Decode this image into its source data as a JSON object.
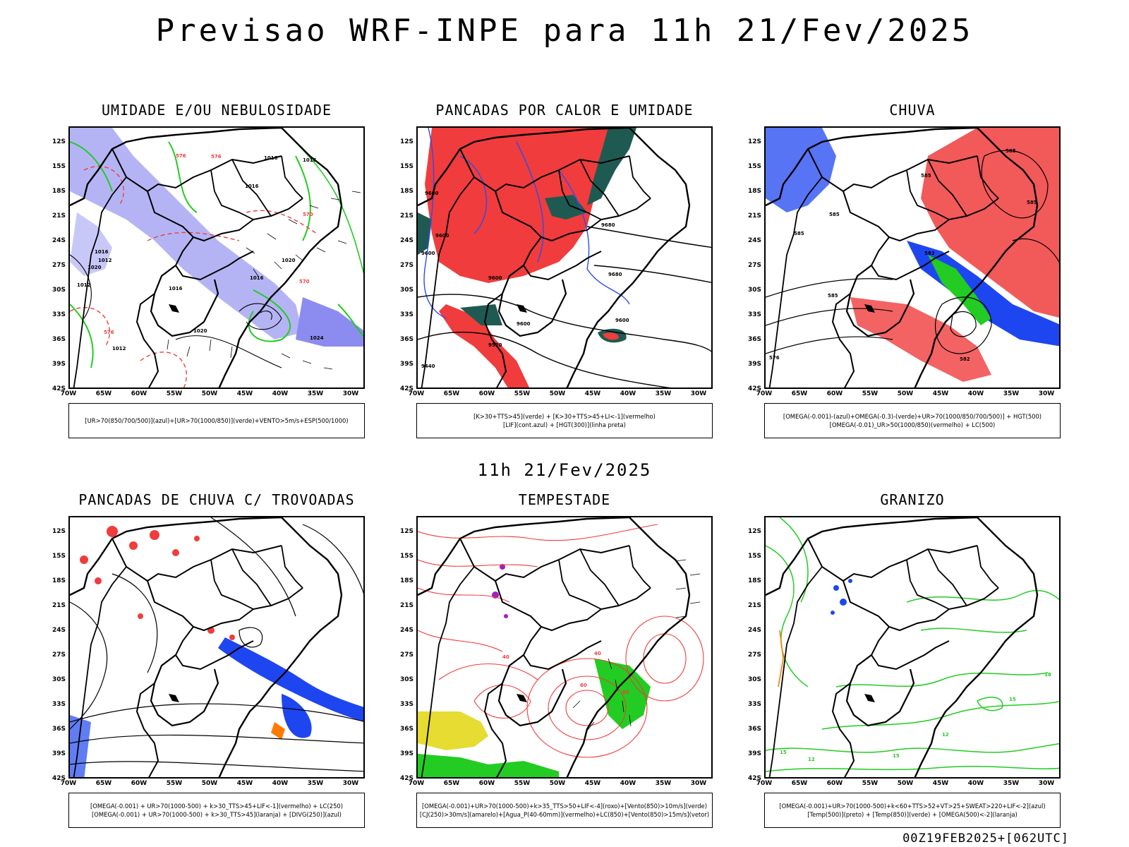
{
  "header": {
    "title": "Previsao WRF-INPE  para 11h 21/Fev/2025"
  },
  "middle_time": "11h 21/Fev/2025",
  "footer": "00Z19FEB2025+[062UTC]",
  "axes": {
    "lat": [
      "12S",
      "15S",
      "18S",
      "21S",
      "24S",
      "27S",
      "30S",
      "33S",
      "36S",
      "39S",
      "42S"
    ],
    "lon": [
      "70W",
      "65W",
      "60W",
      "55W",
      "50W",
      "45W",
      "40W",
      "35W",
      "30W"
    ]
  },
  "panels": [
    {
      "id": "umidade",
      "title": "UMIDADE E/OU NEBULOSIDADE",
      "legend": [
        "[UR>70(850/700/500)](azul)+[UR>70(1000/850)](verde)+VENTO>5m/s+ESP(500/1000)"
      ],
      "contour_labels": [
        "1016",
        "1016",
        "1016",
        "1020",
        "1012",
        "1016",
        "1012",
        "1016",
        "1020",
        "1012",
        "1016",
        "1020",
        "1024",
        "576",
        "576",
        "570",
        "570",
        "576"
      ]
    },
    {
      "id": "pancadas_calor",
      "title": "PANCADAS POR CALOR E UMIDADE",
      "legend": [
        "[K>30+TTS>45](verde)  +  [K>30+TTS>45+LI<-1](vermelho)",
        "[LIF](cont.azul)  +  [HGT(300)](linha preta)"
      ],
      "contour_labels": [
        "9600",
        "9600",
        "9600",
        "9680",
        "9680",
        "9600",
        "9600",
        "9520",
        "9440",
        "9600"
      ]
    },
    {
      "id": "chuva",
      "title": "CHUVA",
      "legend": [
        "[OMEGA(-0.001)-(azul)+OMEGA(-0.3)-(verde)+UR>70(1000/850/700/500)]  +  HGT(500)",
        "[OMEGA(-0.01)_UR>50(1000/850)(vermelho)  +  LC(500)"
      ],
      "contour_labels": [
        "585",
        "585",
        "585",
        "585",
        "585",
        "582",
        "582",
        "576",
        "585"
      ]
    },
    {
      "id": "trovoadas",
      "title": "PANCADAS DE CHUVA C/ TROVOADAS",
      "legend": [
        "[OMEGA(-0.001)  +  UR>70(1000-500)  +  k>30_TTS>45+LIF<-1](vermelho)  +  LC(250)",
        "[OMEGA(-0.001)  +  UR>70(1000-500)  +  k>30_TTS>45](laranja)  +  [DIVG(250)](azul)"
      ],
      "contour_labels": []
    },
    {
      "id": "tempestade",
      "title": "TEMPESTADE",
      "legend": [
        "[OMEGA(-0.001)+UR>70(1000-500)+k>35_TTS>50+LIF<-4](roxo)+[Vento(850)>10m/s](verde)",
        "[CJ(250)>30m/s](amarelo)+[Agua_P(40-60mm)](vermelho)+LC(850)+[Vento(850)>15m/s](vetor)"
      ],
      "contour_labels": [
        "40",
        "60",
        "40",
        "60"
      ]
    },
    {
      "id": "granizo",
      "title": "GRANIZO",
      "legend": [
        "[OMEGA(-0.001)+UR>70(1000-500)+k<60+TTS>52+VT>25+SWEAT>220+LIF<-2](azul)",
        "[Temp(500)](preto)  +  [Temp(850)](verde)  +  [OMEGA(500)<-2](laranja)"
      ],
      "contour_labels": [
        "15",
        "18",
        "12",
        "15",
        "12",
        "15"
      ]
    }
  ],
  "colors": {
    "outline": "#000000",
    "humidity_blue": "#8c8cf0",
    "humidity_green": "#22cc22",
    "convective_red": "#f03c3c",
    "convective_dark": "#1f5a52",
    "lif_blue": "#2a4df0",
    "jet_yellow": "#e6dc32",
    "rain_blue": "#1e46f0",
    "purple": "#a020c0",
    "orange": "#ff7a00"
  }
}
